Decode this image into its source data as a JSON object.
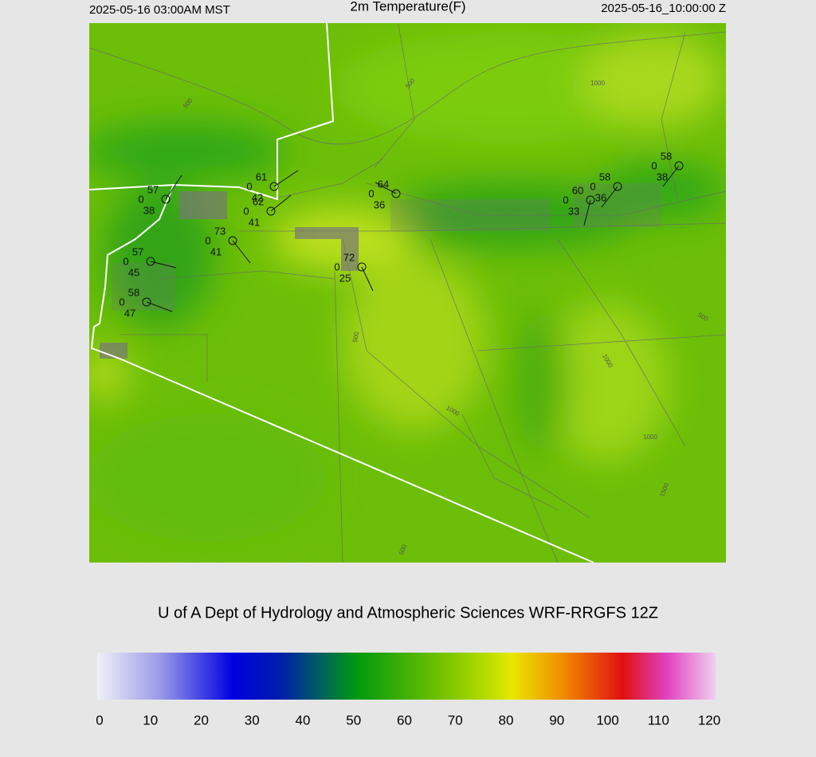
{
  "header": {
    "left": "2025-05-16 03:00AM MST",
    "title": "2m Temperature(F)",
    "right": "2025-05-16_10:00:00 Z"
  },
  "stations": [
    {
      "temp": "57",
      "pressure": "0",
      "dew": "38"
    },
    {
      "temp": "61",
      "pressure": "0",
      "dew": "42"
    },
    {
      "temp": "62",
      "pressure": "0",
      "dew": "41"
    },
    {
      "temp": "73",
      "pressure": "0",
      "dew": "41"
    },
    {
      "temp": "57",
      "pressure": "0",
      "dew": "45"
    },
    {
      "temp": "58",
      "pressure": "0",
      "dew": "47"
    },
    {
      "temp": "72",
      "pressure": "0",
      "dew": "25"
    },
    {
      "temp": "64",
      "pressure": "0",
      "dew": "36"
    },
    {
      "temp": "60",
      "pressure": "0",
      "dew": "33"
    },
    {
      "temp": "58",
      "pressure": "0",
      "dew": "36"
    },
    {
      "temp": "58",
      "pressure": "0",
      "dew": "38"
    }
  ],
  "contour_labels": [
    "500",
    "1000",
    "500",
    "500",
    "1000",
    "1000",
    "500",
    "1000",
    "1500",
    "500"
  ],
  "footer": "U of A Dept of Hydrology and Atmospheric Sciences WRF-RRGFS 12Z",
  "colorbar": {
    "ticks": [
      0,
      10,
      20,
      30,
      40,
      50,
      60,
      70,
      80,
      90,
      100,
      110,
      120
    ]
  }
}
